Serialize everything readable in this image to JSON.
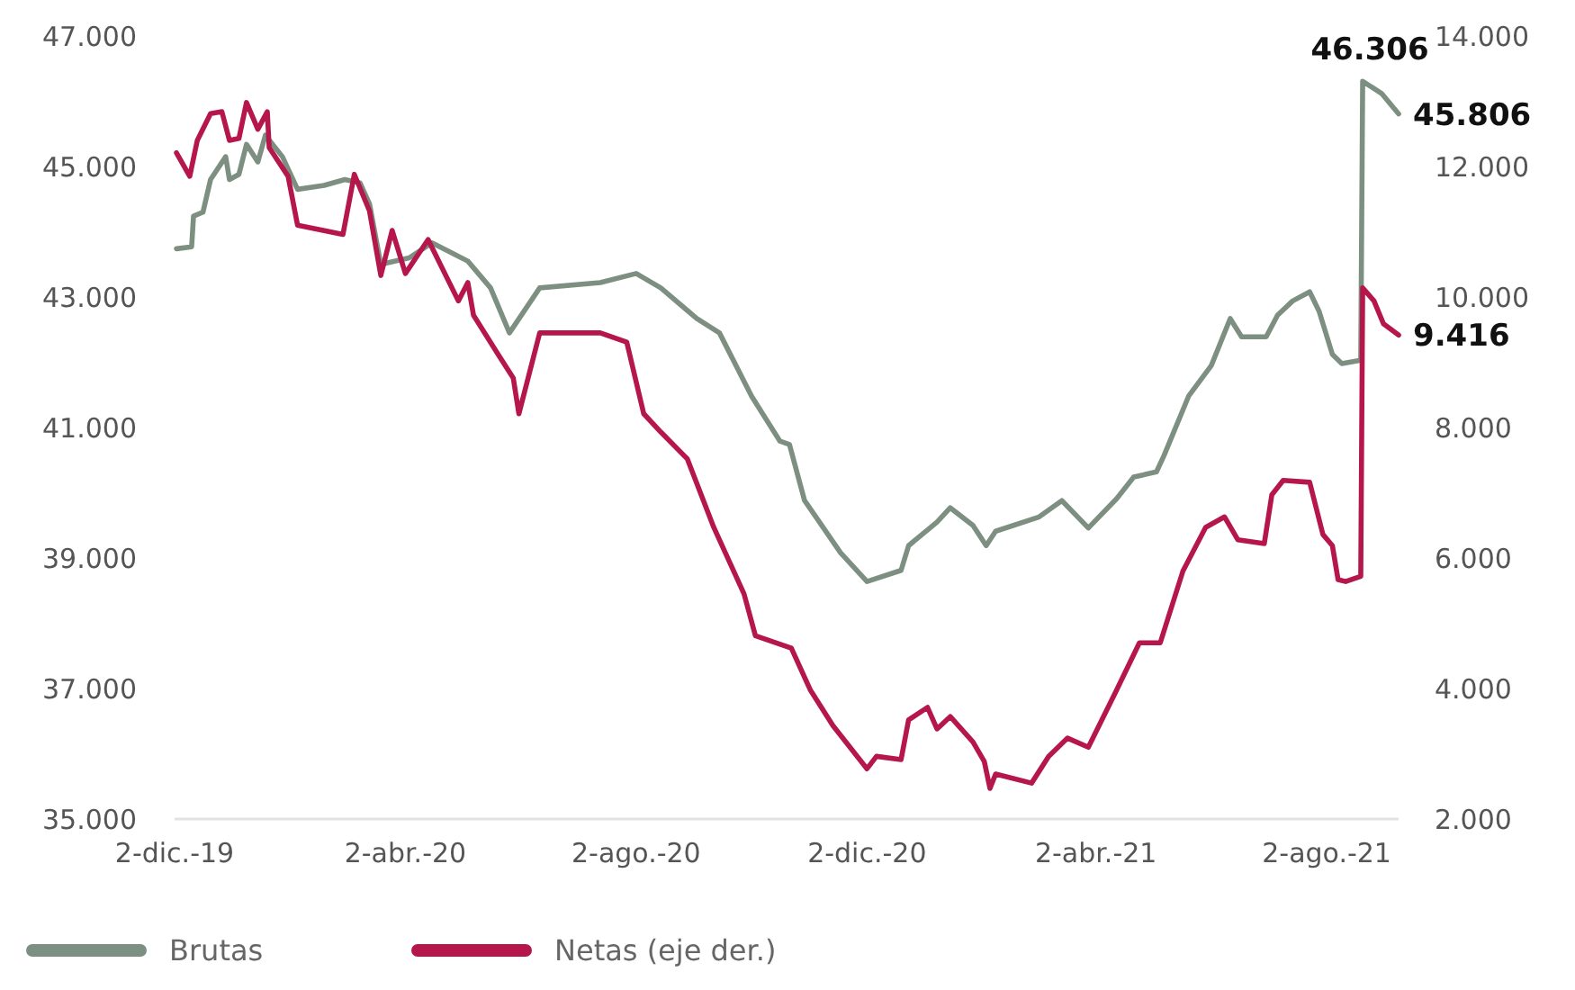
{
  "chart_data": {
    "type": "line",
    "xlim": [
      "2019-12-02",
      "2021-09-09"
    ],
    "xticks": [
      {
        "value": "2019-12-02",
        "label": "2-dic.-19"
      },
      {
        "value": "2020-04-02",
        "label": "2-abr.-20"
      },
      {
        "value": "2020-08-02",
        "label": "2-ago.-20"
      },
      {
        "value": "2020-12-02",
        "label": "2-dic.-20"
      },
      {
        "value": "2021-04-02",
        "label": "2-abr.-21"
      },
      {
        "value": "2021-08-02",
        "label": "2-ago.-21"
      }
    ],
    "ylim": [
      35000,
      47000
    ],
    "yticks": [
      {
        "value": 35000,
        "label": "35.000"
      },
      {
        "value": 37000,
        "label": "37.000"
      },
      {
        "value": 39000,
        "label": "39.000"
      },
      {
        "value": 41000,
        "label": "41.000"
      },
      {
        "value": 43000,
        "label": "43.000"
      },
      {
        "value": 45000,
        "label": "45.000"
      },
      {
        "value": 47000,
        "label": "47.000"
      }
    ],
    "y2lim": [
      2000,
      14000
    ],
    "y2ticks": [
      {
        "value": 2000,
        "label": "2.000"
      },
      {
        "value": 4000,
        "label": "4.000"
      },
      {
        "value": 6000,
        "label": "6.000"
      },
      {
        "value": 8000,
        "label": "8.000"
      },
      {
        "value": 10000,
        "label": "10.000"
      },
      {
        "value": 12000,
        "label": "12.000"
      },
      {
        "value": 14000,
        "label": "14.000"
      }
    ],
    "grid": false,
    "legend": "bottom",
    "marker": "none",
    "line_style": "solid",
    "series": [
      {
        "name": "Brutas",
        "color": "#7d8f80",
        "x": [
          "2019-12-03",
          "2019-12-11",
          "2019-12-12",
          "2019-12-17",
          "2019-12-21",
          "2019-12-29",
          "2019-12-31",
          "2020-01-05",
          "2020-01-09",
          "2020-01-15",
          "2020-01-19",
          "2020-01-28",
          "2020-02-05",
          "2020-02-19",
          "2020-03-01",
          "2020-03-09",
          "2020-03-14",
          "2020-03-20",
          "2020-04-04",
          "2020-04-16",
          "2020-05-05",
          "2020-05-17",
          "2020-05-27",
          "2020-06-12",
          "2020-07-14",
          "2020-08-02",
          "2020-08-15",
          "2020-09-03",
          "2020-09-15",
          "2020-10-02",
          "2020-10-17",
          "2020-10-22",
          "2020-10-30",
          "2020-11-05",
          "2020-11-18",
          "2020-12-02",
          "2020-12-20",
          "2020-12-24",
          "2021-01-08",
          "2021-01-15",
          "2021-01-27",
          "2021-02-03",
          "2021-02-08",
          "2021-03-03",
          "2021-03-15",
          "2021-03-29",
          "2021-04-13",
          "2021-04-22",
          "2021-05-04",
          "2021-05-08",
          "2021-05-21",
          "2021-06-02",
          "2021-06-12",
          "2021-06-18",
          "2021-07-01",
          "2021-07-07",
          "2021-07-15",
          "2021-07-24",
          "2021-07-29",
          "2021-08-05",
          "2021-08-10",
          "2021-08-20",
          "2021-08-21",
          "2021-08-31",
          "2021-09-09"
        ],
        "values": [
          43740,
          43770,
          44240,
          44300,
          44800,
          45150,
          44800,
          44880,
          45340,
          45070,
          45480,
          45150,
          44650,
          44710,
          44800,
          44750,
          44430,
          43500,
          43600,
          43830,
          43550,
          43140,
          42450,
          43140,
          43220,
          43360,
          43140,
          42670,
          42450,
          41480,
          40790,
          40740,
          39880,
          39630,
          39080,
          38640,
          38810,
          39190,
          39550,
          39770,
          39500,
          39190,
          39410,
          39630,
          39880,
          39460,
          39910,
          40240,
          40320,
          40570,
          41480,
          41950,
          42670,
          42390,
          42390,
          42720,
          42940,
          43080,
          42780,
          42120,
          41980,
          42030,
          46306,
          46120,
          45806
        ],
        "value_labels": [
          null,
          null,
          null,
          null,
          null,
          null,
          null,
          null,
          null,
          null,
          null,
          null,
          null,
          null,
          null,
          null,
          null,
          null,
          null,
          null,
          null,
          null,
          null,
          null,
          null,
          null,
          null,
          null,
          null,
          null,
          null,
          null,
          null,
          null,
          null,
          null,
          null,
          null,
          null,
          null,
          null,
          null,
          null,
          null,
          null,
          null,
          null,
          null,
          null,
          null,
          null,
          null,
          null,
          null,
          null,
          null,
          null,
          null,
          null,
          null,
          null,
          null,
          "46.306",
          null,
          "45.806"
        ]
      },
      {
        "name": "Netas (eje der.)",
        "color": "#b5164b",
        "axis": "y2",
        "x": [
          "2019-12-03",
          "2019-12-10",
          "2019-12-14",
          "2019-12-21",
          "2019-12-27",
          "2019-12-31",
          "2020-01-05",
          "2020-01-09",
          "2020-01-15",
          "2020-01-20",
          "2020-01-21",
          "2020-01-31",
          "2020-02-05",
          "2020-02-29",
          "2020-03-06",
          "2020-03-14",
          "2020-03-20",
          "2020-03-26",
          "2020-04-02",
          "2020-04-14",
          "2020-04-30",
          "2020-05-05",
          "2020-05-08",
          "2020-05-21",
          "2020-05-29",
          "2020-06-01",
          "2020-06-12",
          "2020-07-14",
          "2020-07-28",
          "2020-08-06",
          "2020-08-15",
          "2020-08-29",
          "2020-09-12",
          "2020-09-28",
          "2020-10-04",
          "2020-10-23",
          "2020-11-02",
          "2020-11-14",
          "2020-12-02",
          "2020-12-07",
          "2020-12-20",
          "2020-12-24",
          "2021-01-03",
          "2021-01-08",
          "2021-01-15",
          "2021-01-27",
          "2021-02-02",
          "2021-02-05",
          "2021-02-08",
          "2021-02-27",
          "2021-03-08",
          "2021-03-18",
          "2021-03-29",
          "2021-04-13",
          "2021-04-25",
          "2021-05-06",
          "2021-05-18",
          "2021-05-30",
          "2021-06-09",
          "2021-06-16",
          "2021-06-30",
          "2021-07-04",
          "2021-07-10",
          "2021-07-24",
          "2021-07-31",
          "2021-08-05",
          "2021-08-08",
          "2021-08-12",
          "2021-08-20",
          "2021-08-21",
          "2021-08-27",
          "2021-09-01",
          "2021-09-09"
        ],
        "values": [
          12210,
          11850,
          12400,
          12810,
          12840,
          12400,
          12430,
          12980,
          12570,
          12840,
          12290,
          11850,
          11100,
          10960,
          11880,
          11320,
          10330,
          11020,
          10360,
          10880,
          9940,
          10220,
          9720,
          9120,
          8760,
          8210,
          9450,
          9450,
          9310,
          8210,
          7930,
          7520,
          6470,
          5450,
          4810,
          4620,
          3980,
          3430,
          2770,
          2960,
          2910,
          3520,
          3710,
          3380,
          3570,
          3180,
          2880,
          2470,
          2690,
          2550,
          2960,
          3240,
          3100,
          3980,
          4700,
          4700,
          5800,
          6470,
          6630,
          6280,
          6220,
          6970,
          7190,
          7160,
          6360,
          6190,
          5670,
          5640,
          5720,
          10140,
          9940,
          9590,
          9416
        ],
        "value_labels": [
          null,
          null,
          null,
          null,
          null,
          null,
          null,
          null,
          null,
          null,
          null,
          null,
          null,
          null,
          null,
          null,
          null,
          null,
          null,
          null,
          null,
          null,
          null,
          null,
          null,
          null,
          null,
          null,
          null,
          null,
          null,
          null,
          null,
          null,
          null,
          null,
          null,
          null,
          null,
          null,
          null,
          null,
          null,
          null,
          null,
          null,
          null,
          null,
          null,
          null,
          null,
          null,
          null,
          null,
          null,
          null,
          null,
          null,
          null,
          null,
          null,
          null,
          null,
          null,
          null,
          null,
          null,
          null,
          null,
          null,
          null,
          null,
          "9.416"
        ]
      }
    ]
  }
}
